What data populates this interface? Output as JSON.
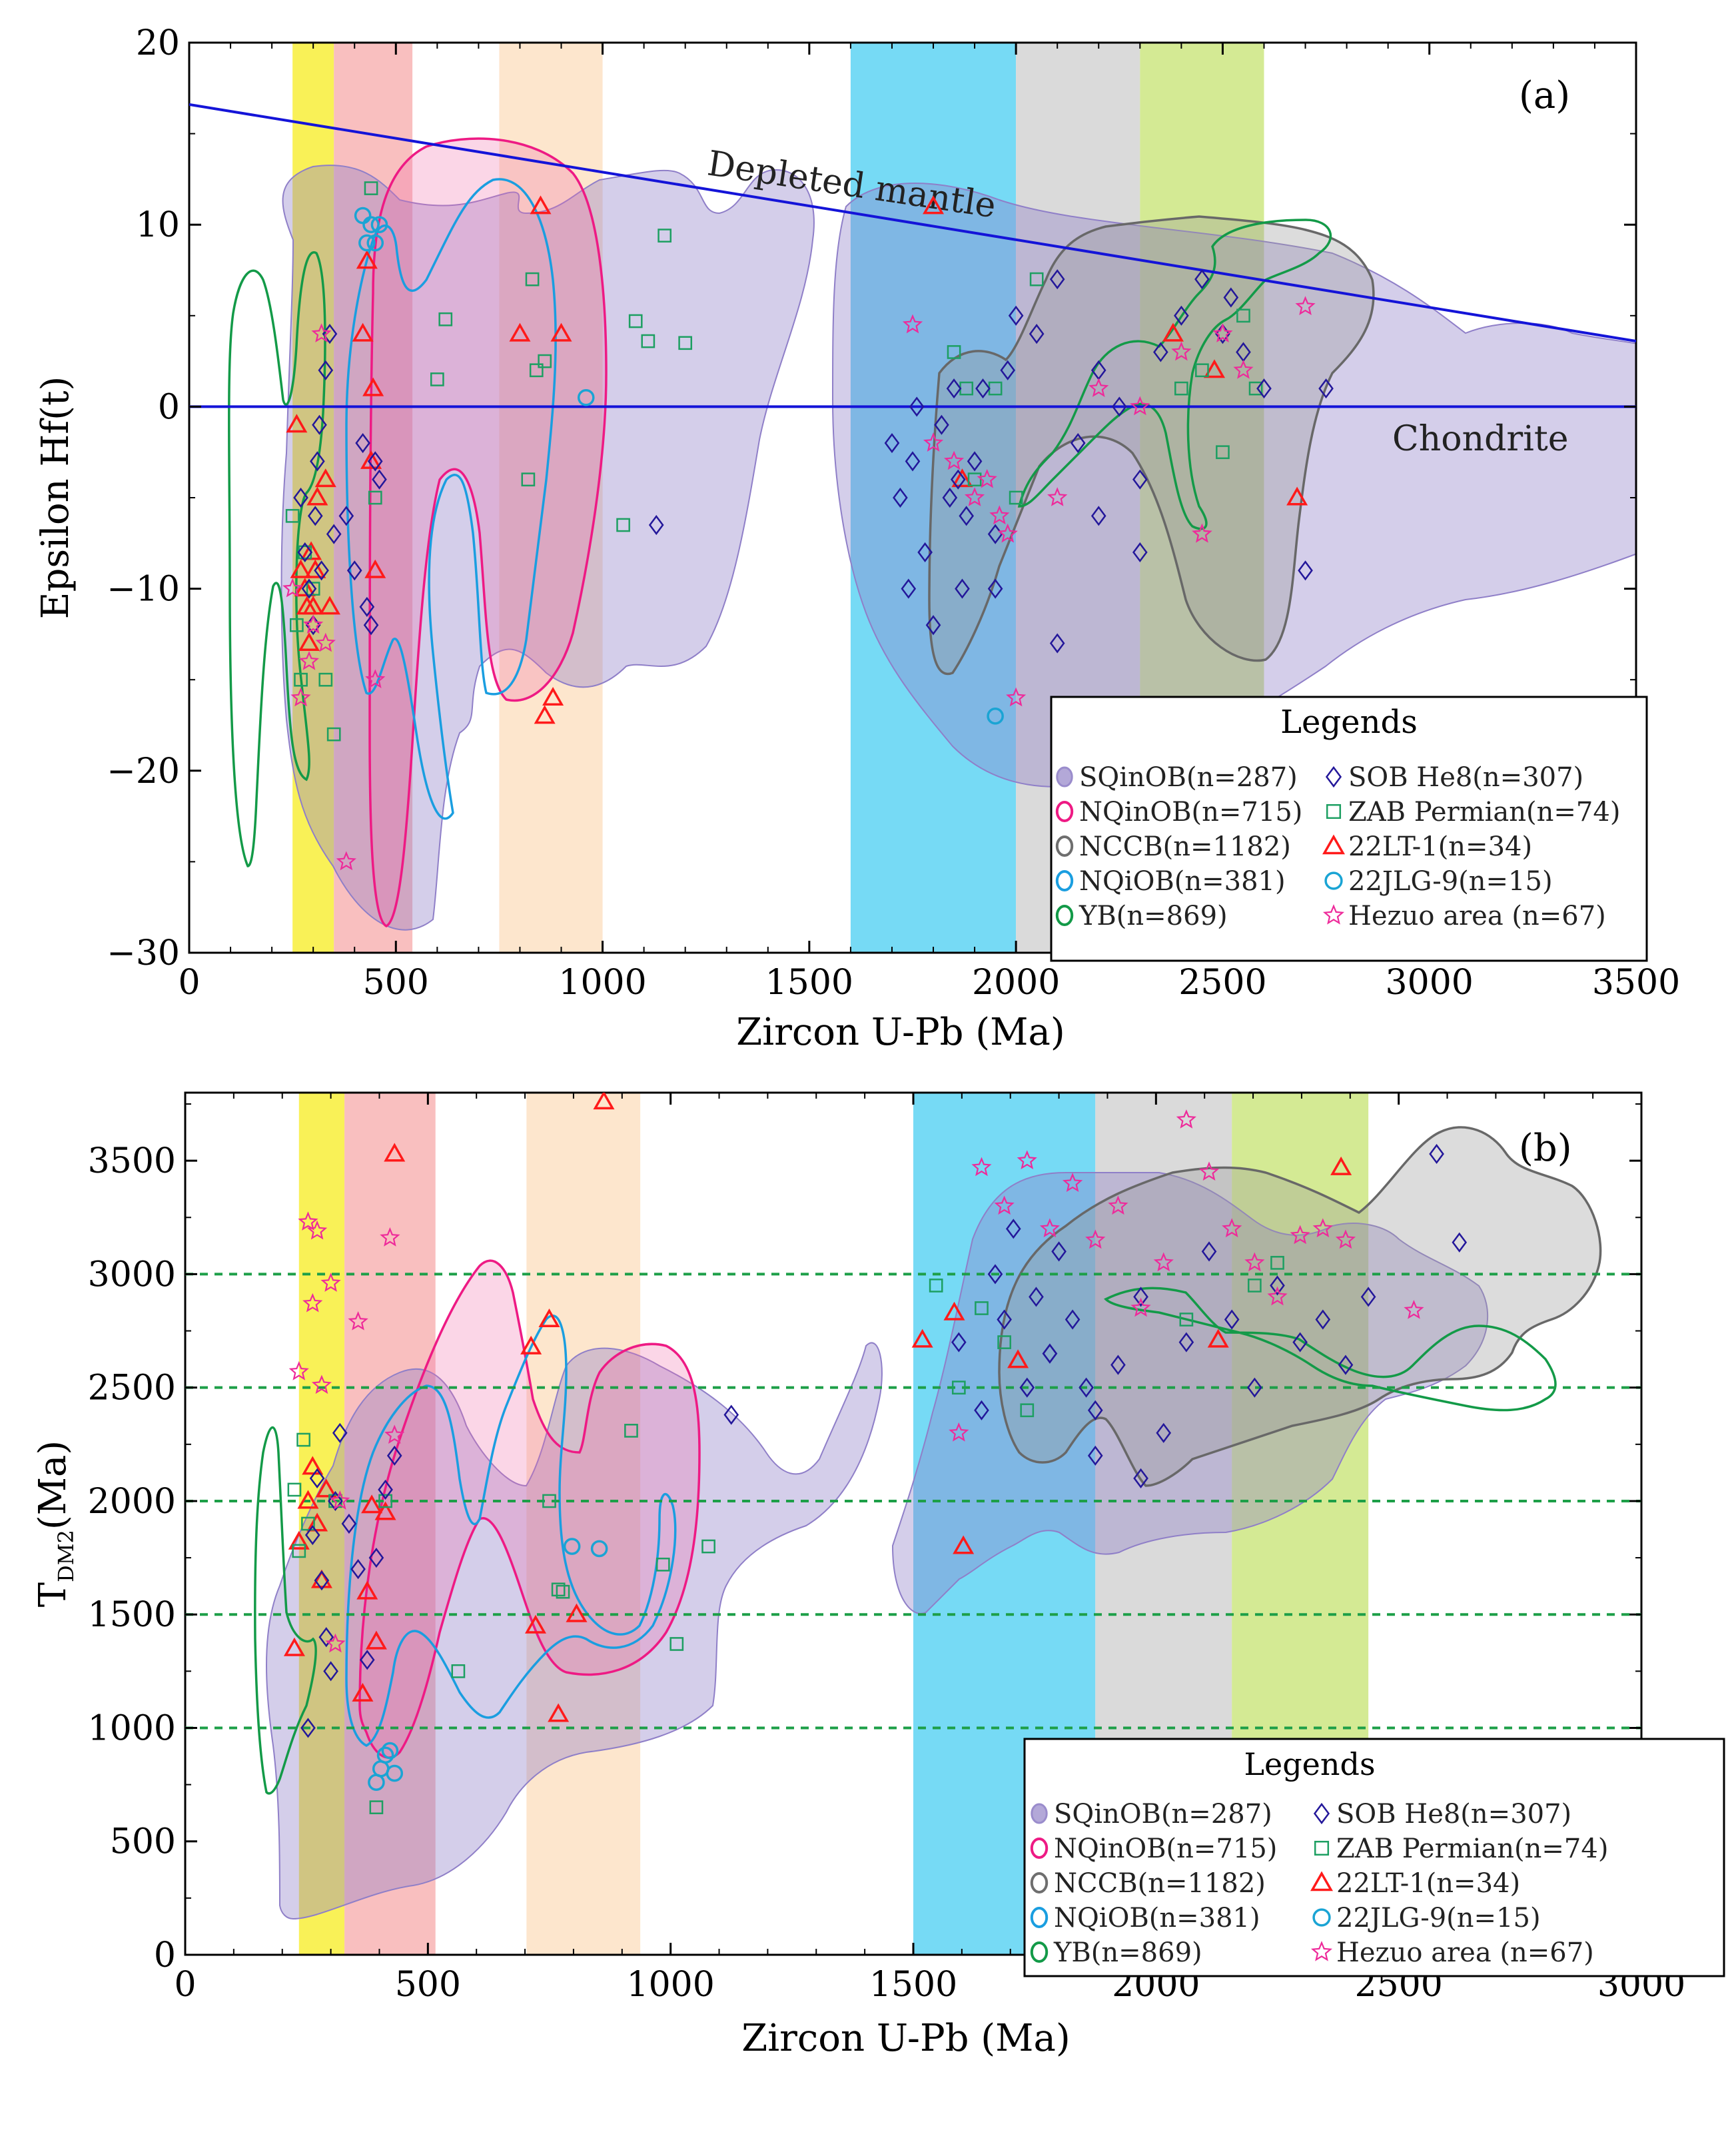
{
  "chart_data": [
    {
      "type": "scatter",
      "panel_label": "(a)",
      "xlabel": "Zircon U-Pb (Ma)",
      "ylabel": "Epsilon Hf(t)",
      "xlim": [
        0,
        3500
      ],
      "ylim": [
        -30,
        20
      ],
      "xticks": [
        "0",
        "500",
        "1000",
        "1500",
        "2000",
        "2500",
        "3000",
        "3500"
      ],
      "yticks": [
        "−30",
        "−20",
        "−10",
        "0",
        "10",
        "20"
      ],
      "bands": [
        {
          "from": 250,
          "to": 350,
          "color": "#f8ee3a"
        },
        {
          "from": 350,
          "to": 540,
          "color": "#f8b4b4"
        },
        {
          "from": 750,
          "to": 1000,
          "color": "#fde2c4"
        },
        {
          "from": 1600,
          "to": 2000,
          "color": "#5ed3f3"
        },
        {
          "from": 2000,
          "to": 2300,
          "color": "#d4d4d4"
        },
        {
          "from": 2300,
          "to": 2600,
          "color": "#cde681"
        }
      ],
      "reference_lines": [
        {
          "label": "Depleted mantle",
          "x": [
            0,
            3500
          ],
          "y": [
            16.6,
            3.6
          ],
          "color": "#1414d8"
        },
        {
          "label": "Chondrite",
          "x": [
            0,
            3500
          ],
          "y": [
            0,
            0
          ],
          "color": "#1414d8"
        }
      ],
      "legend_title": "Legends",
      "legend_position": "bottom-right",
      "legend": [
        {
          "name": "SQinOB(n=287)",
          "marker": "region",
          "color": "#9a8ccc"
        },
        {
          "name": "SOB He8(n=307)",
          "marker": "diamond",
          "color": "#23179a"
        },
        {
          "name": "NQinOB(n=715)",
          "marker": "contour",
          "color": "#ee1a84"
        },
        {
          "name": "ZAB Permian(n=74)",
          "marker": "square",
          "color": "#1d9f62"
        },
        {
          "name": "NCCB(n=1182)",
          "marker": "contour",
          "color": "#6e6e6e"
        },
        {
          "name": "22LT-1(n=34)",
          "marker": "triangle",
          "color": "#ff1a1a"
        },
        {
          "name": "NQiOB(n=381)",
          "marker": "contour",
          "color": "#1a9ee0"
        },
        {
          "name": "22JLG-9(n=15)",
          "marker": "circle",
          "color": "#1aa4d4"
        },
        {
          "name": "YB(n=869)",
          "marker": "contour",
          "color": "#139a48"
        },
        {
          "name": "Hezuo area (n=67)",
          "marker": "star",
          "color": "#ee2a9a"
        }
      ],
      "series": [
        {
          "name": "22LT-1(n=34)",
          "marker": "triangle",
          "color": "#ff1a1a",
          "x": [
            260,
            270,
            280,
            285,
            290,
            295,
            300,
            305,
            310,
            330,
            340,
            420,
            430,
            440,
            450,
            445,
            800,
            850,
            860,
            900,
            880,
            1800,
            1870,
            2380,
            2480,
            2680
          ],
          "y": [
            -1,
            -9,
            -10,
            -11,
            -13,
            -8,
            -11,
            -9,
            -5,
            -4,
            -11,
            4,
            8,
            -3,
            -9,
            1,
            4,
            11,
            -17,
            4,
            -16,
            11,
            -4,
            4,
            2,
            -5
          ]
        },
        {
          "name": "22JLG-9(n=15)",
          "marker": "circle",
          "color": "#1aa4d4",
          "x": [
            420,
            430,
            440,
            450,
            460,
            960,
            1950
          ],
          "y": [
            10.5,
            9,
            10,
            9,
            10,
            0.5,
            -17
          ]
        },
        {
          "name": "ZAB Permian(n=74)",
          "marker": "square",
          "color": "#1d9f62",
          "x": [
            250,
            260,
            270,
            280,
            300,
            330,
            350,
            440,
            450,
            620,
            600,
            820,
            830,
            840,
            860,
            1050,
            1080,
            1110,
            1150,
            1200,
            1850,
            1880,
            1900,
            1950,
            2000,
            2050,
            2400,
            2450,
            2500,
            2550,
            2580
          ],
          "y": [
            -6,
            -12,
            -15,
            -8,
            -10,
            -15,
            -18,
            12,
            -5,
            4.8,
            1.5,
            -4,
            7,
            2,
            2.5,
            -6.5,
            4.7,
            3.6,
            9.4,
            3.5,
            3,
            1,
            -4,
            1,
            -5,
            7,
            1,
            2,
            -2.5,
            5,
            1
          ]
        },
        {
          "name": "SOB He8(n=307)",
          "marker": "diamond",
          "color": "#23179a",
          "x": [
            270,
            280,
            290,
            300,
            305,
            310,
            315,
            320,
            330,
            340,
            350,
            380,
            400,
            420,
            430,
            440,
            450,
            460,
            1130,
            1700,
            1720,
            1740,
            1750,
            1760,
            1780,
            1800,
            1820,
            1840,
            1850,
            1860,
            1870,
            1880,
            1900,
            1920,
            1950,
            1980,
            2000,
            2050,
            2100,
            2150,
            2200,
            2250,
            2300,
            2350,
            2400,
            2450,
            2500,
            2520,
            2550,
            2600,
            2700,
            2750,
            1950,
            2100,
            2200,
            2300
          ],
          "y": [
            -5,
            -8,
            -10,
            -12,
            -6,
            -3,
            -1,
            -9,
            2,
            4,
            -7,
            -6,
            -9,
            -2,
            -11,
            -12,
            -3,
            -4,
            -6.5,
            -2,
            -5,
            -10,
            -3,
            0,
            -8,
            -12,
            -1,
            -5,
            1,
            -4,
            -10,
            -6,
            -3,
            1,
            -7,
            2,
            5,
            4,
            7,
            -2,
            -6,
            0,
            -4,
            3,
            5,
            7,
            4,
            6,
            3,
            1,
            -9,
            1,
            -10,
            -13,
            2,
            -8
          ]
        },
        {
          "name": "Hezuo area (n=67)",
          "marker": "star",
          "color": "#ee2a9a",
          "x": [
            250,
            270,
            290,
            300,
            320,
            330,
            380,
            450,
            1750,
            1800,
            1850,
            1900,
            1930,
            1960,
            2000,
            2100,
            2200,
            2300,
            2400,
            2450,
            2500,
            2550,
            2700,
            2450,
            1980
          ],
          "y": [
            -10,
            -16,
            -14,
            -12,
            4,
            -13,
            -25,
            -15,
            4.5,
            -2,
            -3,
            -5,
            -4,
            -6,
            -16,
            -5,
            1,
            0,
            3,
            -7,
            4,
            2,
            5.5,
            -7,
            -7
          ]
        }
      ]
    },
    {
      "type": "scatter",
      "panel_label": "(b)",
      "xlabel": "Zircon U-Pb (Ma)",
      "ylabel_main": "T",
      "ylabel_sub": "DM2",
      "ylabel_unit": "(Ma)",
      "xlim": [
        0,
        3200
      ],
      "ylim": [
        0,
        3800
      ],
      "xticks": [
        "0",
        "500",
        "1000",
        "1500",
        "2000",
        "2500",
        "3000"
      ],
      "yticks": [
        "0",
        "500",
        "1000",
        "1500",
        "2000",
        "2500",
        "3000",
        "3500"
      ],
      "bands": [
        {
          "from": 250,
          "to": 350,
          "color": "#f8ee3a"
        },
        {
          "from": 350,
          "to": 550,
          "color": "#f8b4b4"
        },
        {
          "from": 750,
          "to": 1000,
          "color": "#fde2c4"
        },
        {
          "from": 1600,
          "to": 2000,
          "color": "#5ed3f3"
        },
        {
          "from": 2000,
          "to": 2300,
          "color": "#d4d4d4"
        },
        {
          "from": 2300,
          "to": 2600,
          "color": "#cde681"
        }
      ],
      "reference_lines": [
        {
          "y": 1000,
          "color": "#1d9f48"
        },
        {
          "y": 1500,
          "color": "#1d9f48"
        },
        {
          "y": 2000,
          "color": "#1d9f48"
        },
        {
          "y": 2500,
          "color": "#1d9f48"
        },
        {
          "y": 3000,
          "color": "#1d9f48"
        }
      ],
      "legend_title": "Legends",
      "legend_position": "bottom-right",
      "legend": [
        {
          "name": "SQinOB(n=287)",
          "marker": "region",
          "color": "#9a8ccc"
        },
        {
          "name": "SOB He8(n=307)",
          "marker": "diamond",
          "color": "#23179a"
        },
        {
          "name": "NQinOB(n=715)",
          "marker": "contour",
          "color": "#ee1a84"
        },
        {
          "name": "ZAB Permian(n=74)",
          "marker": "square",
          "color": "#1d9f62"
        },
        {
          "name": "NCCB(n=1182)",
          "marker": "contour",
          "color": "#6e6e6e"
        },
        {
          "name": "22LT-1(n=34)",
          "marker": "triangle",
          "color": "#ff1a1a"
        },
        {
          "name": "NQiOB(n=381)",
          "marker": "contour",
          "color": "#1a9ee0"
        },
        {
          "name": "22JLG-9(n=15)",
          "marker": "circle",
          "color": "#1aa4d4"
        },
        {
          "name": "YB(n=869)",
          "marker": "contour",
          "color": "#139a48"
        },
        {
          "name": "Hezuo area (n=67)",
          "marker": "star",
          "color": "#ee2a9a"
        }
      ],
      "series": [
        {
          "name": "22LT-1(n=34)",
          "marker": "triangle",
          "color": "#ff1a1a",
          "x": [
            240,
            250,
            270,
            280,
            290,
            300,
            310,
            390,
            400,
            410,
            420,
            440,
            460,
            760,
            770,
            800,
            820,
            860,
            920,
            1620,
            1690,
            1710,
            1830,
            2270,
            2540
          ],
          "y": [
            1350,
            1820,
            2000,
            2150,
            1900,
            1650,
            2050,
            1150,
            1600,
            1980,
            1380,
            1950,
            3530,
            2680,
            1450,
            2800,
            1060,
            1500,
            3760,
            2710,
            2830,
            1800,
            2620,
            2710,
            3470
          ]
        },
        {
          "name": "22JLG-9(n=15)",
          "marker": "circle",
          "color": "#1aa4d4",
          "x": [
            420,
            430,
            440,
            450,
            460,
            850,
            910
          ],
          "y": [
            760,
            820,
            880,
            900,
            800,
            1800,
            1790
          ]
        },
        {
          "name": "ZAB Permian(n=74)",
          "marker": "square",
          "color": "#1d9f62",
          "x": [
            240,
            250,
            260,
            270,
            330,
            420,
            440,
            600,
            800,
            820,
            830,
            980,
            1050,
            1080,
            1150,
            1650,
            1700,
            1750,
            1800,
            1850,
            2200,
            2350,
            2400
          ],
          "y": [
            2050,
            1780,
            2270,
            1900,
            2000,
            650,
            2000,
            1250,
            2000,
            1610,
            1600,
            2310,
            1720,
            1370,
            1800,
            2950,
            2500,
            2850,
            2700,
            2400,
            2800,
            2950,
            3050
          ]
        },
        {
          "name": "SOB He8(n=307)",
          "marker": "diamond",
          "color": "#23179a",
          "x": [
            270,
            280,
            290,
            300,
            310,
            320,
            330,
            340,
            360,
            380,
            400,
            420,
            440,
            460,
            1200,
            1700,
            1750,
            1780,
            1800,
            1820,
            1850,
            1870,
            1900,
            1920,
            1950,
            1980,
            2000,
            2050,
            2100,
            2150,
            2200,
            2250,
            2300,
            2350,
            2400,
            2450,
            2500,
            2550,
            2600,
            2750,
            2800,
            1900,
            2000,
            2100
          ],
          "y": [
            1000,
            1850,
            2100,
            1650,
            1400,
            1250,
            2000,
            2300,
            1900,
            1700,
            1300,
            1750,
            2050,
            2200,
            2380,
            2700,
            2400,
            3000,
            2800,
            3200,
            2500,
            2900,
            2650,
            3100,
            2800,
            2500,
            2200,
            2600,
            2900,
            2300,
            2700,
            3100,
            2800,
            2500,
            2950,
            2700,
            2800,
            2600,
            2900,
            3530,
            3140,
            2650,
            2400,
            2100
          ]
        },
        {
          "name": "Hezuo area (n=67)",
          "marker": "star",
          "color": "#ee2a9a",
          "x": [
            250,
            270,
            280,
            290,
            300,
            320,
            330,
            340,
            380,
            450,
            460,
            1700,
            1750,
            1800,
            1850,
            1900,
            1950,
            2000,
            2050,
            2100,
            2150,
            2200,
            2250,
            2300,
            2350,
            2400,
            2450,
            2500,
            2550,
            2700
          ],
          "y": [
            2570,
            3230,
            2870,
            3190,
            2510,
            2960,
            1370,
            2000,
            2790,
            3160,
            2290,
            2300,
            3470,
            3300,
            3500,
            3200,
            3400,
            3150,
            3300,
            2850,
            3050,
            3680,
            3450,
            3200,
            3050,
            2900,
            3170,
            3200,
            3150,
            2840
          ]
        }
      ]
    }
  ]
}
